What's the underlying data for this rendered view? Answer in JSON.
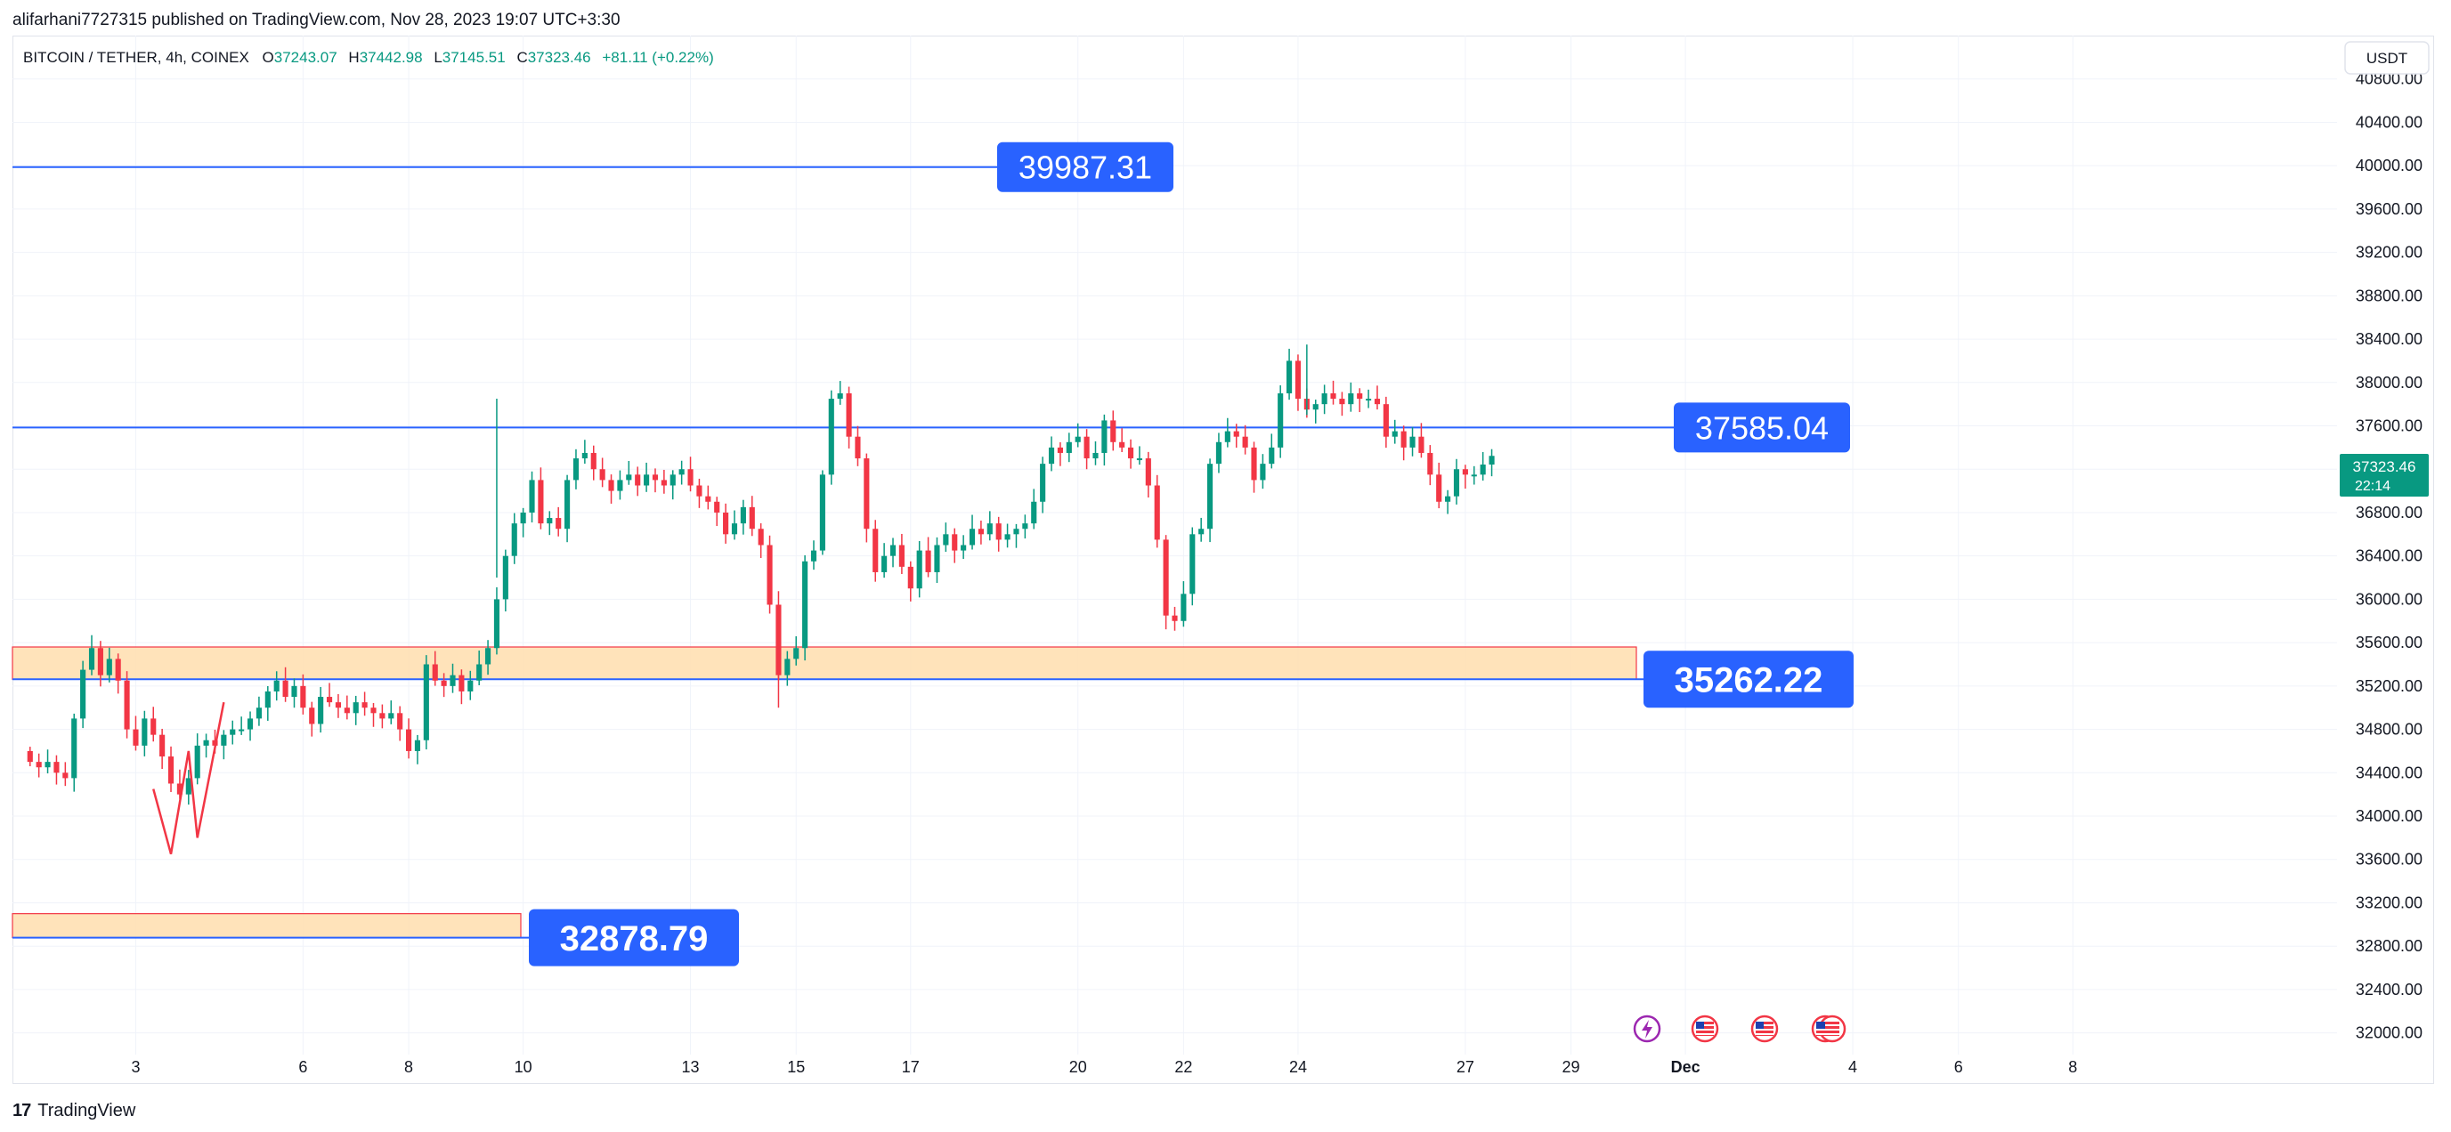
{
  "header": {
    "publisher": "alifarhani7727315 published on TradingView.com, Nov 28, 2023 19:07 UTC+3:30"
  },
  "legend": {
    "symbol": "BITCOIN / TETHER, 4h, COINEX",
    "o_label": "O",
    "o_value": "37243.07",
    "h_label": "H",
    "h_value": "37442.98",
    "l_label": "L",
    "l_value": "37145.51",
    "c_label": "C",
    "c_value": "37323.46",
    "change": "+81.11 (+0.22%)"
  },
  "currency_button": "USDT",
  "price_tag": {
    "price": "37323.46",
    "countdown": "22:14"
  },
  "footer": {
    "brand": "TradingView",
    "logo_text": "17"
  },
  "colors": {
    "up": "#089981",
    "down": "#f23645",
    "level_line": "#2962ff",
    "label_bg": "#2962ff",
    "zone_fill": "#ffe0b2",
    "zone_border": "#f23645",
    "grid": "#f0f3fa",
    "axis_text": "#131722"
  },
  "icons": [
    "lightning-event-icon",
    "us-flag-icon",
    "us-flag-icon",
    "us-flag-icon"
  ],
  "chart_data": {
    "type": "candlestick",
    "title": "BITCOIN / TETHER, 4h, COINEX",
    "ylim": [
      31800,
      41200
    ],
    "y_ticks": [
      32000,
      32400,
      32800,
      33200,
      33600,
      34000,
      34400,
      34800,
      35200,
      35600,
      36000,
      36400,
      36800,
      37200,
      37600,
      38000,
      38400,
      38800,
      39200,
      39600,
      40000,
      40400,
      40800
    ],
    "y_tick_labels": [
      "32000.00",
      "32400.00",
      "32800.00",
      "33200.00",
      "33600.00",
      "34000.00",
      "34400.00",
      "34800.00",
      "35200.00",
      "35600.00",
      "36000.00",
      "36400.00",
      "36800.00",
      "37200.00",
      "37600.00",
      "38000.00",
      "38400.00",
      "38800.00",
      "39200.00",
      "39600.00",
      "40000.00",
      "40400.00",
      "40800.00"
    ],
    "x_range_bars": [
      -2,
      262
    ],
    "x_ticks": [
      {
        "label": "3",
        "bar": 12
      },
      {
        "label": "6",
        "bar": 31
      },
      {
        "label": "8",
        "bar": 43
      },
      {
        "label": "10",
        "bar": 56
      },
      {
        "label": "13",
        "bar": 75
      },
      {
        "label": "15",
        "bar": 87
      },
      {
        "label": "17",
        "bar": 100
      },
      {
        "label": "20",
        "bar": 119
      },
      {
        "label": "22",
        "bar": 131
      },
      {
        "label": "24",
        "bar": 144
      },
      {
        "label": "27",
        "bar": 163
      },
      {
        "label": "29",
        "bar": 175
      },
      {
        "label": "Dec",
        "bar": 188
      },
      {
        "label": "4",
        "bar": 207
      },
      {
        "label": "6",
        "bar": 219
      },
      {
        "label": "8",
        "bar": 232
      }
    ],
    "grid": true,
    "closes": [
      34500,
      34450,
      34500,
      34400,
      34350,
      34900,
      35350,
      35550,
      35300,
      35450,
      35250,
      34800,
      34650,
      34900,
      34750,
      34550,
      34300,
      34200,
      34350,
      34650,
      34700,
      34650,
      34750,
      34800,
      34800,
      34900,
      35000,
      35150,
      35250,
      35100,
      35200,
      35000,
      34850,
      35100,
      35050,
      35000,
      34950,
      35050,
      35000,
      34950,
      34900,
      34950,
      34800,
      34600,
      34700,
      35400,
      35250,
      35200,
      35300,
      35150,
      35250,
      35400,
      35550,
      36000,
      36400,
      36700,
      36800,
      37100,
      36700,
      36750,
      36650,
      37100,
      37300,
      37350,
      37200,
      37100,
      37000,
      37100,
      37150,
      37050,
      37150,
      37100,
      37050,
      37150,
      37200,
      37050,
      36950,
      36900,
      36800,
      36600,
      36700,
      36850,
      36650,
      36500,
      35950,
      35300,
      35450,
      35550,
      36350,
      36450,
      37150,
      37850,
      37900,
      37500,
      37300,
      36650,
      36250,
      36400,
      36500,
      36300,
      36100,
      36450,
      36250,
      36500,
      36600,
      36450,
      36500,
      36650,
      36600,
      36700,
      36550,
      36600,
      36650,
      36700,
      36900,
      37250,
      37400,
      37350,
      37450,
      37500,
      37300,
      37350,
      37650,
      37450,
      37400,
      37300,
      37300,
      37050,
      36550,
      35850,
      35800,
      36050,
      36600,
      36650,
      37250,
      37450,
      37550,
      37500,
      37400,
      37100,
      37250,
      37400,
      37900,
      38200,
      37850,
      37750,
      37800,
      37900,
      37850,
      37800,
      37900,
      37850,
      37850,
      37800,
      37500,
      37550,
      37400,
      37500,
      37350,
      37150,
      36900,
      36950,
      37200,
      37150,
      37150,
      37243,
      37323
    ],
    "extras": [
      35200,
      35300,
      35250,
      35500,
      35450,
      35150,
      35100,
      35550
    ],
    "ohlc_legend": {
      "open": 37243.07,
      "high": 37442.98,
      "low": 37145.51,
      "close": 37323.46
    },
    "horizontal_levels": [
      {
        "price": 39987.31,
        "label": "39987.31"
      },
      {
        "price": 37585.04,
        "label": "37585.04"
      },
      {
        "price": 35262.22,
        "label": "35262.22"
      },
      {
        "price": 32878.79,
        "label": "32878.79"
      }
    ],
    "zones": [
      {
        "from": 35262.22,
        "to": 35560
      },
      {
        "from": 32878.79,
        "to": 33100
      }
    ],
    "annotation_path": [
      [
        14,
        34250
      ],
      [
        16,
        33650
      ],
      [
        18,
        34600
      ],
      [
        19,
        33800
      ],
      [
        22,
        35050
      ]
    ]
  }
}
